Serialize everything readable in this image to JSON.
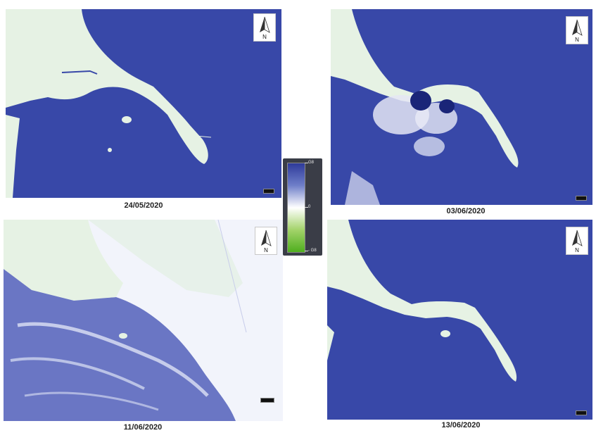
{
  "panels": [
    {
      "date": "24/05/2020",
      "north_label": "N"
    },
    {
      "date": "03/06/2020",
      "north_label": "N"
    },
    {
      "date": "11/06/2020",
      "north_label": "N"
    },
    {
      "date": "13/06/2020",
      "north_label": "N"
    }
  ],
  "legend": {
    "max_label": "G8",
    "mid_label": "0",
    "min_label": "- G8"
  },
  "colors": {
    "water": "#3848a8",
    "land": "#e6f2e4",
    "plume": "#eef1fa",
    "legend_high": "#2e3a9a",
    "legend_mid": "#ffffff",
    "legend_low": "#4fae1e"
  }
}
